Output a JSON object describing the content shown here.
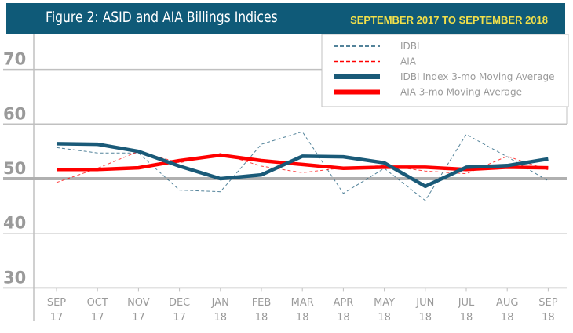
{
  "header": {
    "title": "Figure 2: ASID and AIA Billings Indices",
    "range": "SEPTEMBER 2017 TO SEPTEMBER 2018"
  },
  "colors": {
    "header_bg": "#0f5a78",
    "range_text": "#f2e04a",
    "idbi": "#1a5a78",
    "aia": "#ff0000",
    "grid": "#c0c0c0",
    "baseline": "#b0b0b0",
    "tick_text": "#9a9a9a"
  },
  "chart_data": {
    "type": "line",
    "title": "Figure 2: ASID and AIA Billings Indices",
    "subtitle": "SEPTEMBER 2017 TO SEPTEMBER 2018",
    "xlabel": "",
    "ylabel": "",
    "ylim": [
      30,
      75
    ],
    "yticks": [
      30,
      40,
      50,
      60,
      70
    ],
    "baseline": 50,
    "grid": true,
    "legend_position": "top-right",
    "categories": [
      [
        "SEP",
        "17"
      ],
      [
        "OCT",
        "17"
      ],
      [
        "NOV",
        "17"
      ],
      [
        "DEC",
        "17"
      ],
      [
        "JAN",
        "18"
      ],
      [
        "FEB",
        "18"
      ],
      [
        "MAR",
        "18"
      ],
      [
        "APR",
        "18"
      ],
      [
        "MAY",
        "18"
      ],
      [
        "JUN",
        "18"
      ],
      [
        "JUL",
        "18"
      ],
      [
        "AUG",
        "18"
      ],
      [
        "SEP",
        "18"
      ]
    ],
    "series": [
      {
        "name": "IDBI",
        "style": "dashed",
        "color": "#1a5a78",
        "values": [
          55.7,
          54.7,
          54.7,
          47.9,
          47.6,
          56.3,
          58.6,
          47.3,
          51.9,
          46.0,
          58.1,
          54.0,
          49.6
        ]
      },
      {
        "name": "AIA",
        "style": "dashed",
        "color": "#ff0000",
        "values": [
          49.3,
          51.9,
          55.0,
          52.9,
          54.6,
          52.3,
          51.1,
          52.0,
          52.4,
          51.4,
          50.9,
          54.1,
          51.6
        ]
      },
      {
        "name": "IDBI Index 3-mo Moving Average",
        "style": "solid-thick",
        "color": "#1a5a78",
        "values": [
          56.4,
          56.3,
          55.0,
          52.3,
          50.0,
          50.7,
          54.1,
          54.0,
          52.9,
          48.6,
          52.1,
          52.4,
          53.6
        ]
      },
      {
        "name": "AIA 3-mo Moving Average",
        "style": "solid-thick",
        "color": "#ff0000",
        "values": [
          51.7,
          51.7,
          52.0,
          53.3,
          54.3,
          53.3,
          52.6,
          51.9,
          52.1,
          52.1,
          51.7,
          52.1,
          52.0
        ]
      }
    ]
  }
}
